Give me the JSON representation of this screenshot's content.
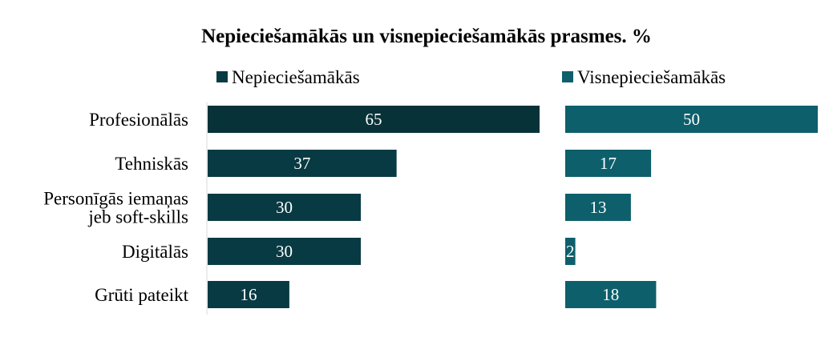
{
  "chart_data": {
    "type": "bar",
    "orientation": "horizontal",
    "title": "Nepieciešamākās un visnepieciešamākās prasmes. %",
    "categories": [
      [
        "Profesionālās"
      ],
      [
        "Tehniskās"
      ],
      [
        "Personīgās iemaņas",
        "jeb soft-skills"
      ],
      [
        "Digitālās"
      ],
      [
        "Grūti pateikt"
      ]
    ],
    "series": [
      {
        "name": "Nepieciešamākās",
        "values": [
          65,
          37,
          30,
          30,
          16
        ],
        "color": "#083a43",
        "highlight_color": "#063238"
      },
      {
        "name": "Visnepieciešamākās",
        "values": [
          50,
          17,
          13,
          2,
          18
        ],
        "color": "#0d5f6b"
      }
    ],
    "legend_position": "top",
    "grid": false
  }
}
